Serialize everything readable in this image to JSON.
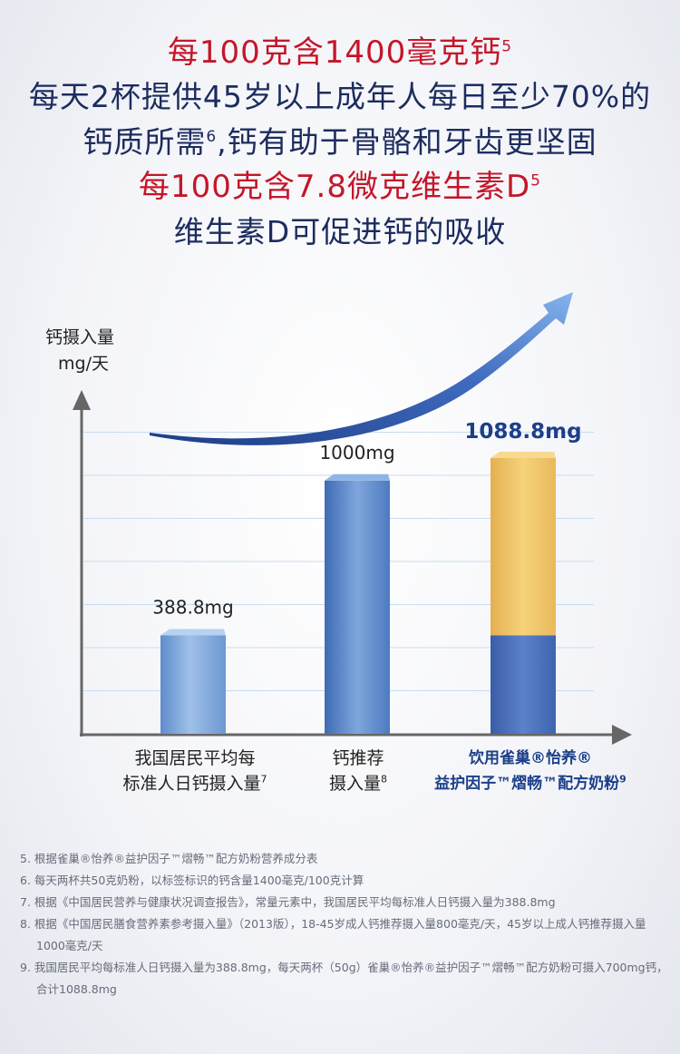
{
  "headlines": [
    {
      "text": "每100克含1400毫克钙",
      "sup": "5"
    },
    {
      "text": "每天2杯提供45岁以上成年人每日至少70%的",
      "sup": ""
    },
    {
      "text": "钙质所需",
      "sup": "6",
      "tail": ",钙有助于骨骼和牙齿更坚固"
    },
    {
      "text": "每100克含7.8微克维生素D",
      "sup": "5"
    },
    {
      "text": "维生素D可促进钙的吸收",
      "sup": ""
    }
  ],
  "colors": {
    "red": "#c4162a",
    "navy": "#1c2c5e",
    "bar_light": "#7fa6d6",
    "bar_mid": "#4f7ec4",
    "bar_dark": "#3d62ad",
    "bar_gold": "#f0c060",
    "axis": "#666666"
  },
  "chart_data": {
    "type": "bar",
    "ylabel_line1": "钙摄入量",
    "ylabel_line2": "mg/天",
    "ylim": [
      0,
      1250
    ],
    "grid": true,
    "categories": [
      {
        "line1": "我国居民平均每",
        "line2": "标准人日钙摄入量",
        "sup": "7"
      },
      {
        "line1": "钙推荐",
        "line2": "摄入量",
        "sup": "8"
      },
      {
        "line1": "饮用雀巢®怡养®",
        "line2": "益护因子™熠畅™配方奶粉",
        "sup": "9"
      }
    ],
    "values": [
      388.8,
      1000,
      1088.8
    ],
    "value_labels": [
      "388.8mg",
      "1000mg",
      "1088.8mg"
    ],
    "stack_base": 388.8,
    "stack_top": 700,
    "trend_arrow": "increasing"
  },
  "footnotes": [
    "5. 根据雀巢®怡养®益护因子™熠畅™配方奶粉营养成分表",
    "6. 每天两杯共50克奶粉，以标签标识的钙含量1400毫克/100克计算",
    "7. 根据《中国居民营养与健康状况调查报告》，常量元素中，我国居民平均每标准人日钙摄入量为388.8mg",
    "8. 根据《中国居民膳食营养素参考摄入量》（2013版），18-45岁成人钙推荐摄入量800毫克/天，45岁以上成人钙推荐摄入量1000毫克/天",
    "9. 我国居民平均每标准人日钙摄入量为388.8mg，每天两杯（50g）雀巢®怡养®益护因子™熠畅™配方奶粉可摄入700mg钙，合计1088.8mg"
  ]
}
